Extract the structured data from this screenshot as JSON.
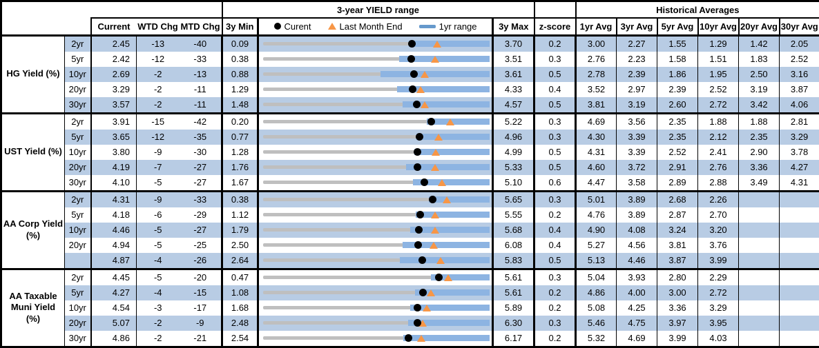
{
  "header": {
    "chart_title": "3-year YIELD range",
    "hist_title": "Historical Averages",
    "columns": {
      "current": "Current",
      "wtd": "WTD Chg",
      "mtd": "MTD Chg",
      "min3y": "3y Min",
      "max3y": "3y Max",
      "zscore": "z-score",
      "avgs": [
        "1yr Avg",
        "3yr Avg",
        "5yr Avg",
        "10yr Avg",
        "20yr Avg",
        "30yr Avg"
      ]
    },
    "legend": {
      "current": "Curent",
      "last_month_end": "Last Month End",
      "range_1yr": "1yr range"
    }
  },
  "colors": {
    "band": "#b8cce4",
    "bar_1yr": "#8db4e2",
    "track_3y": "#bfbfbf",
    "marker_current": "#000000",
    "marker_last_month_end": "#f79646",
    "border": "#000000"
  },
  "chart_data": {
    "type": "table",
    "embedded_chart_type": "bullet-range",
    "embedded_chart_note": "per-row: gray track spans 3y Min to 3y Max; blue bar = 1yr range (yr1_lo to 3y Max); black dot = Current; orange triangle = Last Month End",
    "sections": [
      {
        "label": "HG Yield (%)",
        "rows": [
          {
            "tenor": "2yr",
            "current": "2.45",
            "wtd": "-13",
            "mtd": "-40",
            "min": "0.09",
            "max": "3.70",
            "z": "0.2",
            "avgs": [
              "3.00",
              "2.27",
              "1.55",
              "1.29",
              "1.42",
              "2.05"
            ],
            "lme": 2.85,
            "yr1_lo": 2.4
          },
          {
            "tenor": "5yr",
            "current": "2.42",
            "wtd": "-12",
            "mtd": "-33",
            "min": "0.38",
            "max": "3.51",
            "z": "0.3",
            "avgs": [
              "2.76",
              "2.23",
              "1.58",
              "1.51",
              "1.83",
              "2.52"
            ],
            "lme": 2.75,
            "yr1_lo": 2.25
          },
          {
            "tenor": "10yr",
            "current": "2.69",
            "wtd": "-2",
            "mtd": "-13",
            "min": "0.88",
            "max": "3.61",
            "z": "0.5",
            "avgs": [
              "2.78",
              "2.39",
              "1.86",
              "1.95",
              "2.50",
              "3.16"
            ],
            "lme": 2.82,
            "yr1_lo": 2.29
          },
          {
            "tenor": "20yr",
            "current": "3.29",
            "wtd": "-2",
            "mtd": "-11",
            "min": "1.29",
            "max": "4.33",
            "z": "0.4",
            "avgs": [
              "3.52",
              "2.97",
              "2.39",
              "2.52",
              "3.19",
              "3.87"
            ],
            "lme": 3.4,
            "yr1_lo": 3.08
          },
          {
            "tenor": "30yr",
            "current": "3.57",
            "wtd": "-2",
            "mtd": "-11",
            "min": "1.48",
            "max": "4.57",
            "z": "0.5",
            "avgs": [
              "3.81",
              "3.19",
              "2.60",
              "2.72",
              "3.42",
              "4.06"
            ],
            "lme": 3.68,
            "yr1_lo": 3.38
          }
        ]
      },
      {
        "label": "UST Yield (%)",
        "rows": [
          {
            "tenor": "2yr",
            "current": "3.91",
            "wtd": "-15",
            "mtd": "-42",
            "min": "0.20",
            "max": "5.22",
            "z": "0.3",
            "avgs": [
              "4.69",
              "3.56",
              "2.35",
              "1.88",
              "1.88",
              "2.81"
            ],
            "lme": 4.33,
            "yr1_lo": 3.82
          },
          {
            "tenor": "5yr",
            "current": "3.65",
            "wtd": "-12",
            "mtd": "-35",
            "min": "0.77",
            "max": "4.96",
            "z": "0.3",
            "avgs": [
              "4.30",
              "3.39",
              "2.35",
              "2.12",
              "2.35",
              "3.29"
            ],
            "lme": 4.0,
            "yr1_lo": 3.6
          },
          {
            "tenor": "10yr",
            "current": "3.80",
            "wtd": "-9",
            "mtd": "-30",
            "min": "1.28",
            "max": "4.99",
            "z": "0.5",
            "avgs": [
              "4.31",
              "3.39",
              "2.52",
              "2.41",
              "2.90",
              "3.78"
            ],
            "lme": 4.1,
            "yr1_lo": 3.75
          },
          {
            "tenor": "20yr",
            "current": "4.19",
            "wtd": "-7",
            "mtd": "-27",
            "min": "1.76",
            "max": "5.33",
            "z": "0.5",
            "avgs": [
              "4.60",
              "3.72",
              "2.91",
              "2.76",
              "3.36",
              "4.27"
            ],
            "lme": 4.46,
            "yr1_lo": 4.01
          },
          {
            "tenor": "30yr",
            "current": "4.10",
            "wtd": "-5",
            "mtd": "-27",
            "min": "1.67",
            "max": "5.10",
            "z": "0.6",
            "avgs": [
              "4.47",
              "3.58",
              "2.89",
              "2.88",
              "3.49",
              "4.31"
            ],
            "lme": 4.37,
            "yr1_lo": 3.93
          }
        ]
      },
      {
        "label": "AA Corp Yield\n(%)",
        "rows": [
          {
            "tenor": "2yr",
            "current": "4.31",
            "wtd": "-9",
            "mtd": "-33",
            "min": "0.38",
            "max": "5.65",
            "z": "0.3",
            "avgs": [
              "5.01",
              "3.89",
              "2.68",
              "2.26",
              "",
              ""
            ],
            "lme": 4.64,
            "yr1_lo": 4.22
          },
          {
            "tenor": "5yr",
            "current": "4.18",
            "wtd": "-6",
            "mtd": "-29",
            "min": "1.12",
            "max": "5.55",
            "z": "0.2",
            "avgs": [
              "4.76",
              "3.89",
              "2.87",
              "2.70",
              "",
              ""
            ],
            "lme": 4.47,
            "yr1_lo": 4.1
          },
          {
            "tenor": "10yr",
            "current": "4.46",
            "wtd": "-5",
            "mtd": "-27",
            "min": "1.79",
            "max": "5.68",
            "z": "0.4",
            "avgs": [
              "4.90",
              "4.08",
              "3.24",
              "3.20",
              "",
              ""
            ],
            "lme": 4.73,
            "yr1_lo": 4.31
          },
          {
            "tenor": "20yr",
            "current": "4.94",
            "wtd": "-5",
            "mtd": "-25",
            "min": "2.50",
            "max": "6.08",
            "z": "0.4",
            "avgs": [
              "5.27",
              "4.56",
              "3.81",
              "3.76",
              "",
              ""
            ],
            "lme": 5.19,
            "yr1_lo": 4.7
          },
          {
            "tenor": "",
            "current": "4.87",
            "wtd": "-4",
            "mtd": "-26",
            "min": "2.64",
            "max": "5.83",
            "z": "0.5",
            "avgs": [
              "5.13",
              "4.46",
              "3.87",
              "3.99",
              "",
              ""
            ],
            "lme": 5.13,
            "yr1_lo": 4.56
          }
        ]
      },
      {
        "label": "AA Taxable\nMuni Yield\n(%)",
        "rows": [
          {
            "tenor": "2yr",
            "current": "4.45",
            "wtd": "-5",
            "mtd": "-20",
            "min": "0.47",
            "max": "5.61",
            "z": "0.3",
            "avgs": [
              "5.04",
              "3.93",
              "2.80",
              "2.29",
              "",
              ""
            ],
            "lme": 4.65,
            "yr1_lo": 4.26
          },
          {
            "tenor": "5yr",
            "current": "4.27",
            "wtd": "-4",
            "mtd": "-15",
            "min": "1.08",
            "max": "5.61",
            "z": "0.2",
            "avgs": [
              "4.86",
              "4.00",
              "3.00",
              "2.72",
              "",
              ""
            ],
            "lme": 4.42,
            "yr1_lo": 4.11
          },
          {
            "tenor": "10yr",
            "current": "4.54",
            "wtd": "-3",
            "mtd": "-17",
            "min": "1.68",
            "max": "5.89",
            "z": "0.2",
            "avgs": [
              "5.08",
              "4.25",
              "3.36",
              "3.29",
              "",
              ""
            ],
            "lme": 4.71,
            "yr1_lo": 4.41
          },
          {
            "tenor": "20yr",
            "current": "5.07",
            "wtd": "-2",
            "mtd": "-9",
            "min": "2.48",
            "max": "6.30",
            "z": "0.3",
            "avgs": [
              "5.46",
              "4.75",
              "3.97",
              "3.95",
              "",
              ""
            ],
            "lme": 5.16,
            "yr1_lo": 4.92
          },
          {
            "tenor": "30yr",
            "current": "4.86",
            "wtd": "-2",
            "mtd": "-21",
            "min": "2.54",
            "max": "6.17",
            "z": "0.2",
            "avgs": [
              "5.32",
              "4.69",
              "3.99",
              "4.03",
              "",
              ""
            ],
            "lme": 5.07,
            "yr1_lo": 4.78
          }
        ]
      }
    ]
  }
}
